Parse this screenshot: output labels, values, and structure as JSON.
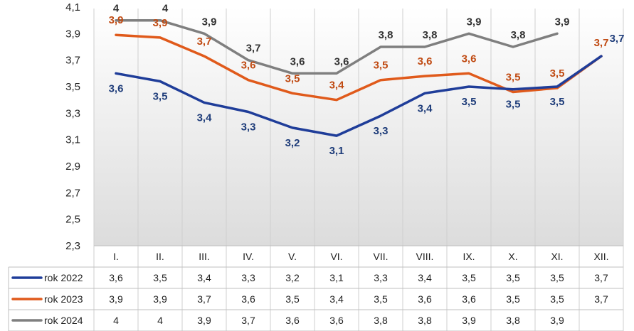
{
  "chart_data": {
    "type": "line",
    "categories": [
      "I.",
      "II.",
      "III.",
      "IV.",
      "V.",
      "VI.",
      "VII.",
      "VIII.",
      "IX.",
      "X.",
      "XI.",
      "XII."
    ],
    "ylim": [
      2.3,
      4.1
    ],
    "yticks": [
      "4,1",
      "3,9",
      "3,7",
      "3,5",
      "3,3",
      "3,1",
      "2,9",
      "2,7",
      "2,5",
      "2,3"
    ],
    "grid": "vertical",
    "legend": "data-table",
    "series": [
      {
        "name": "rok 2022",
        "color": "#1f3d99",
        "values": [
          3.6,
          3.54,
          3.38,
          3.31,
          3.19,
          3.13,
          3.28,
          3.45,
          3.5,
          3.48,
          3.5,
          3.73
        ],
        "labels": [
          "3,6",
          "3,5",
          "3,4",
          "3,3",
          "3,2",
          "3,1",
          "3,3",
          "3,4",
          "3,5",
          "3,5",
          "3,5",
          "3,7"
        ]
      },
      {
        "name": "rok 2023",
        "color": "#e05a1b",
        "values": [
          3.89,
          3.87,
          3.73,
          3.55,
          3.45,
          3.4,
          3.55,
          3.58,
          3.6,
          3.46,
          3.49,
          3.73
        ],
        "labels": [
          "3,9",
          "3,9",
          "3,7",
          "3,6",
          "3,5",
          "3,4",
          "3,5",
          "3,6",
          "3,6",
          "3,5",
          "3,5",
          "3,7"
        ]
      },
      {
        "name": "rok 2024",
        "color": "#7f7f7f",
        "values": [
          4.0,
          4.0,
          3.9,
          3.7,
          3.6,
          3.6,
          3.8,
          3.8,
          3.9,
          3.8,
          3.9,
          null
        ],
        "labels": [
          "4",
          "4",
          "3,9",
          "3,7",
          "3,6",
          "3,6",
          "3,8",
          "3,8",
          "3,9",
          "3,8",
          "3,9",
          ""
        ]
      }
    ]
  }
}
